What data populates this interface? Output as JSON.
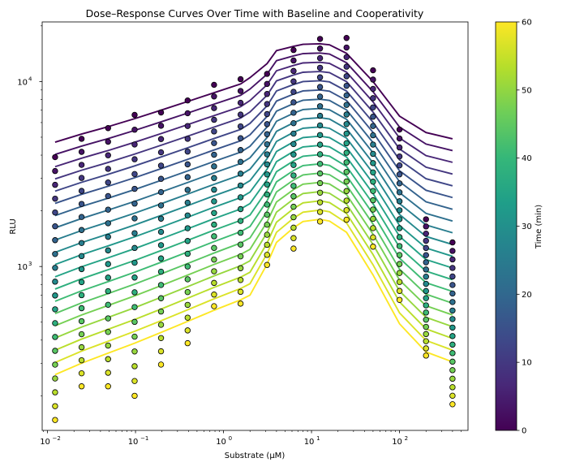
{
  "chart_data": {
    "type": "scatter",
    "title": "Dose–Response Curves Over Time with Baseline and Cooperativity",
    "xlabel": "Substrate (μM)",
    "ylabel": "RLU",
    "xscale": "log",
    "yscale": "log",
    "xlim": [
      0.0087,
      600
    ],
    "ylim": [
      130,
      21000
    ],
    "xticks": [
      {
        "value": 0.01,
        "base": "10",
        "exp": "−2"
      },
      {
        "value": 0.1,
        "base": "10",
        "exp": "−1"
      },
      {
        "value": 1,
        "base": "10",
        "exp": "0"
      },
      {
        "value": 10,
        "base": "10",
        "exp": "1"
      },
      {
        "value": 100,
        "base": "10",
        "exp": "2"
      }
    ],
    "yticks": [
      {
        "value": 1000,
        "base": "10",
        "exp": "3"
      },
      {
        "value": 10000,
        "base": "10",
        "exp": "4"
      }
    ],
    "concentrations": [
      0.0122,
      0.0244,
      0.0488,
      0.0977,
      0.195,
      0.391,
      0.781,
      1.5625,
      3.125,
      6.25,
      12.5,
      25,
      50,
      100,
      200,
      400
    ],
    "times": [
      0,
      3.16,
      6.32,
      9.47,
      12.63,
      15.79,
      18.95,
      22.11,
      25.26,
      28.42,
      31.58,
      34.74,
      37.89,
      41.05,
      44.21,
      47.37,
      50.53,
      53.68,
      56.84,
      60
    ],
    "model": {
      "curve_x": [
        0.0122,
        0.0244,
        0.0488,
        0.0977,
        0.195,
        0.391,
        0.781,
        1.5625,
        2.0,
        3.125,
        4.0,
        6.25,
        8.0,
        12.5,
        16,
        25,
        50,
        100,
        200,
        400
      ],
      "t0_curve": [
        4700,
        5200,
        5700,
        6300,
        7000,
        7800,
        8700,
        9700,
        10500,
        12500,
        14700,
        15500,
        15900,
        16000,
        15800,
        14200,
        10000,
        6500,
        5300,
        4900
      ],
      "t60_curve": [
        260,
        300,
        340,
        385,
        440,
        505,
        580,
        660,
        700,
        1030,
        1350,
        1620,
        1750,
        1800,
        1760,
        1530,
        900,
        490,
        345,
        305
      ],
      "series_count": 20
    },
    "observed_t0": [
      3900,
      4900,
      5600,
      6600,
      6800,
      7900,
      9600,
      10300,
      11000,
      14800,
      17000,
      17200,
      11500,
      5500,
      1800,
      1350
    ],
    "observed_t60": [
      148,
      225,
      225,
      200,
      295,
      385,
      610,
      630,
      1020,
      1250,
      1750,
      1790,
      1280,
      660,
      330,
      180
    ],
    "colorbar": {
      "label": "Time (min)",
      "min": 0,
      "max": 60,
      "ticks": [
        "0",
        "10",
        "20",
        "30",
        "40",
        "50",
        "60"
      ]
    },
    "colormap": [
      "#440154",
      "#482878",
      "#3e4989",
      "#31688e",
      "#26828e",
      "#1f9e89",
      "#35b779",
      "#6ece58",
      "#b5de2b",
      "#fde725"
    ]
  }
}
